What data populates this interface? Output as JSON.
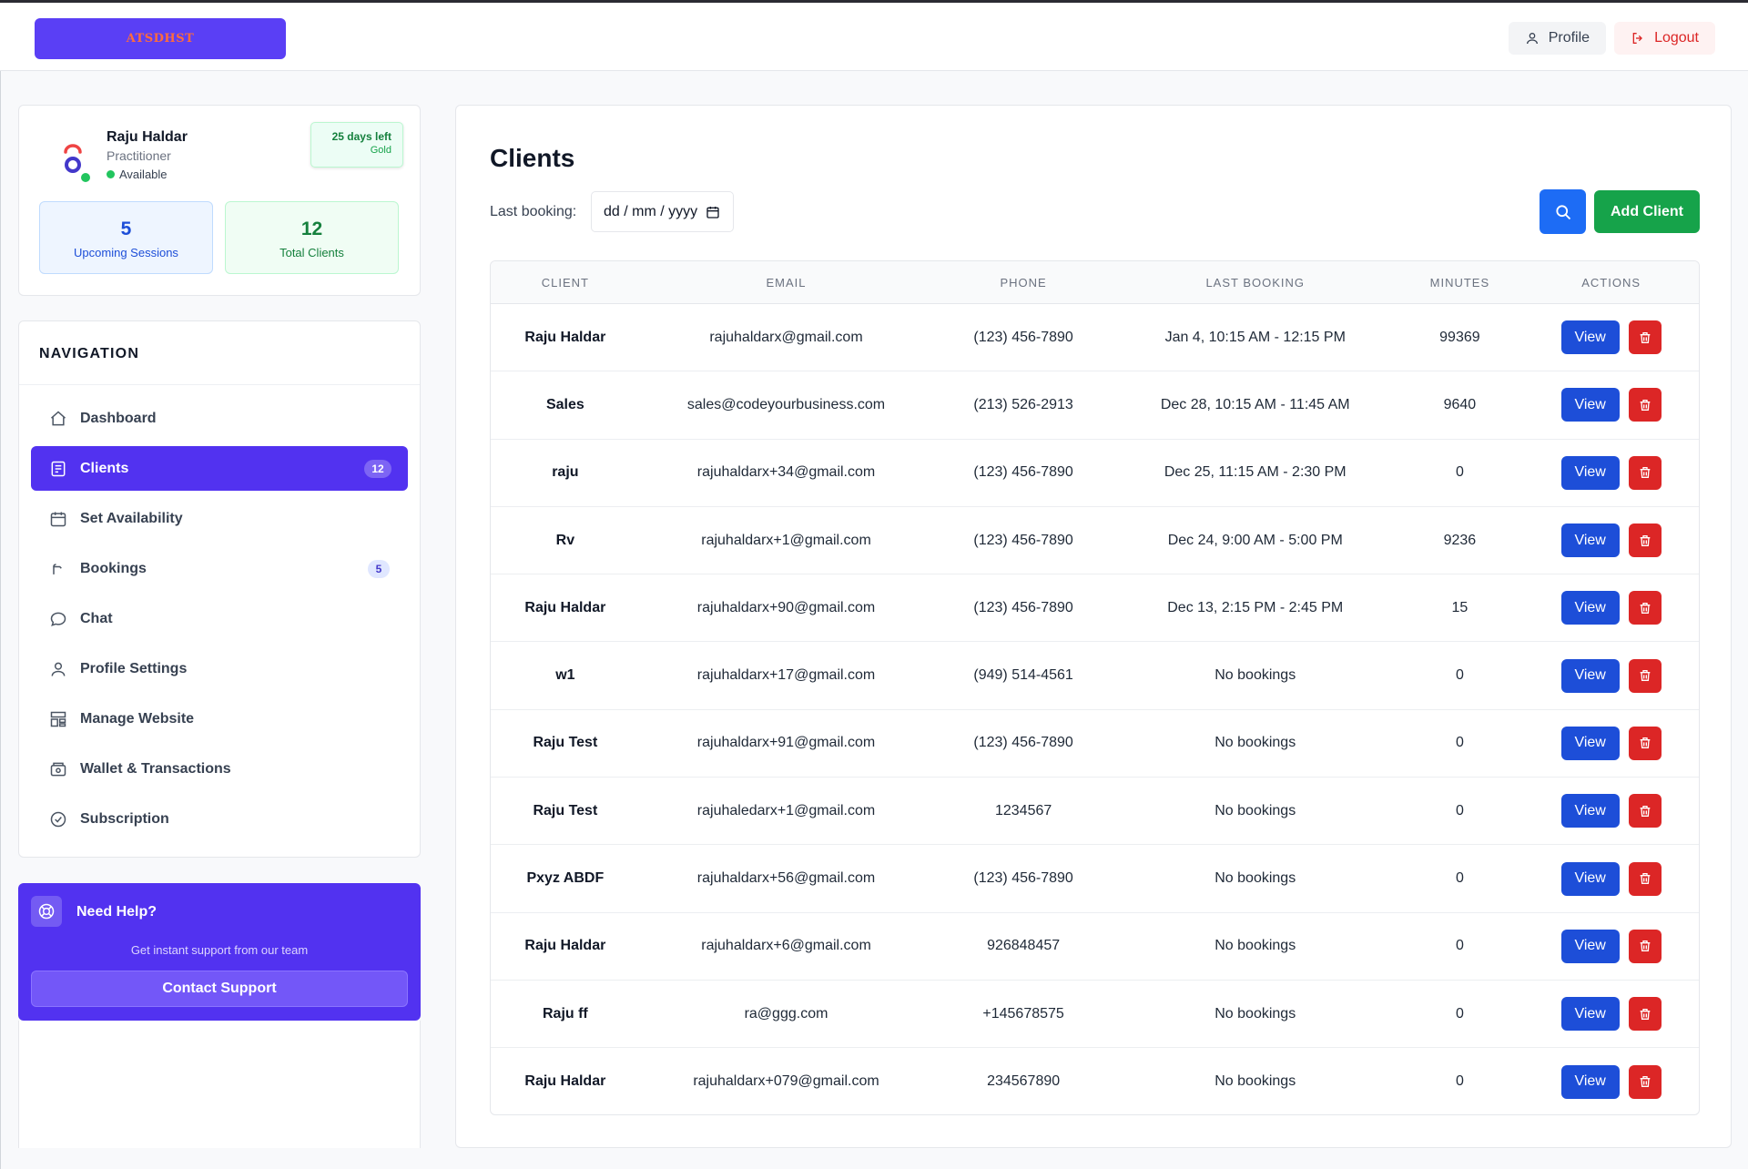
{
  "header": {
    "logo_text": "ATSDHST",
    "profile_label": "Profile",
    "logout_label": "Logout"
  },
  "user": {
    "name": "Raju Haldar",
    "role": "Practitioner",
    "status": "Available",
    "plan_days": "25 days left",
    "plan_tier": "Gold",
    "upcoming_count": "5",
    "upcoming_label": "Upcoming Sessions",
    "clients_count": "12",
    "clients_label": "Total Clients"
  },
  "nav": {
    "heading": "NAVIGATION",
    "items": [
      {
        "label": "Dashboard",
        "icon": "home-icon"
      },
      {
        "label": "Clients",
        "icon": "clients-icon",
        "badge": "12",
        "active": true
      },
      {
        "label": "Set Availability",
        "icon": "calendar-icon"
      },
      {
        "label": "Bookings",
        "icon": "bookings-icon",
        "badge": "5"
      },
      {
        "label": "Chat",
        "icon": "chat-icon"
      },
      {
        "label": "Profile Settings",
        "icon": "user-icon"
      },
      {
        "label": "Manage Website",
        "icon": "website-icon"
      },
      {
        "label": "Wallet & Transactions",
        "icon": "wallet-icon"
      },
      {
        "label": "Subscription",
        "icon": "check-circle-icon"
      }
    ]
  },
  "help": {
    "title": "Need Help?",
    "subtitle": "Get instant support from our team",
    "button": "Contact Support"
  },
  "main": {
    "title": "Clients",
    "filter_label": "Last booking:",
    "date_placeholder": "dd / mm / yyyy",
    "add_button": "Add Client",
    "columns": [
      "CLIENT",
      "EMAIL",
      "PHONE",
      "LAST BOOKING",
      "MINUTES",
      "ACTIONS"
    ],
    "view_label": "View",
    "rows": [
      {
        "client": "Raju Haldar",
        "email": "rajuhaldarx@gmail.com",
        "phone": "(123) 456-7890",
        "last_booking": "Jan 4, 10:15 AM - 12:15 PM",
        "minutes": "99369"
      },
      {
        "client": "Sales",
        "email": "sales@codeyourbusiness.com",
        "phone": "(213) 526-2913",
        "last_booking": "Dec 28, 10:15 AM - 11:45 AM",
        "minutes": "9640"
      },
      {
        "client": "raju",
        "email": "rajuhaldarx+34@gmail.com",
        "phone": "(123) 456-7890",
        "last_booking": "Dec 25, 11:15 AM - 2:30 PM",
        "minutes": "0"
      },
      {
        "client": "Rv",
        "email": "rajuhaldarx+1@gmail.com",
        "phone": "(123) 456-7890",
        "last_booking": "Dec 24, 9:00 AM - 5:00 PM",
        "minutes": "9236"
      },
      {
        "client": "Raju Haldar",
        "email": "rajuhaldarx+90@gmail.com",
        "phone": "(123) 456-7890",
        "last_booking": "Dec 13, 2:15 PM - 2:45 PM",
        "minutes": "15"
      },
      {
        "client": "w1",
        "email": "rajuhaldarx+17@gmail.com",
        "phone": "(949) 514-4561",
        "last_booking": "No bookings",
        "minutes": "0"
      },
      {
        "client": "Raju Test",
        "email": "rajuhaldarx+91@gmail.com",
        "phone": "(123) 456-7890",
        "last_booking": "No bookings",
        "minutes": "0"
      },
      {
        "client": "Raju Test",
        "email": "rajuhaledarx+1@gmail.com",
        "phone": "1234567",
        "last_booking": "No bookings",
        "minutes": "0"
      },
      {
        "client": "Pxyz ABDF",
        "email": "rajuhaldarx+56@gmail.com",
        "phone": "(123) 456-7890",
        "last_booking": "No bookings",
        "minutes": "0"
      },
      {
        "client": "Raju Haldar",
        "email": "rajuhaldarx+6@gmail.com",
        "phone": "926848457",
        "last_booking": "No bookings",
        "minutes": "0"
      },
      {
        "client": "Raju ff",
        "email": "ra@ggg.com",
        "phone": "+145678575",
        "last_booking": "No bookings",
        "minutes": "0"
      },
      {
        "client": "Raju Haldar",
        "email": "rajuhaldarx+079@gmail.com",
        "phone": "234567890",
        "last_booking": "No bookings",
        "minutes": "0"
      }
    ]
  },
  "colors": {
    "primary": "#5232f0",
    "view_button": "#1d4ed8",
    "delete_button": "#dc2626",
    "add_button": "#16a34a",
    "search_button": "#1d6cf5"
  }
}
